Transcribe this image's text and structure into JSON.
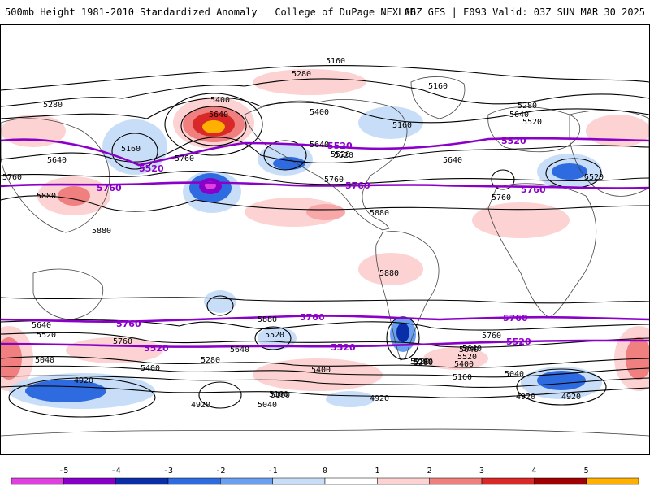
{
  "header": {
    "title_left": "500mb Height 1981-2010 Standardized Anomaly | College of DuPage NEXLAB",
    "title_right": "06Z GFS | F093 Valid: 03Z SUN MAR 30 2025"
  },
  "map": {
    "type": "500mb height contours with standardized anomaly shading",
    "contour_labels": [
      "5160",
      "5280",
      "5160",
      "5280",
      "5400",
      "5160",
      "5280",
      "5400",
      "5520",
      "5640",
      "5520",
      "5640",
      "5160",
      "5760",
      "5880",
      "5880",
      "5640",
      "5760",
      "5520",
      "5640",
      "5760",
      "5880",
      "5880",
      "5760",
      "5520",
      "5640",
      "5760",
      "5880",
      "5640",
      "5520",
      "5040",
      "4920",
      "5760",
      "5640",
      "5400",
      "5280",
      "5520",
      "5400",
      "5280",
      "5160",
      "5640",
      "5520",
      "5400",
      "5280",
      "5160",
      "5040",
      "4920",
      "4920",
      "5040",
      "4920",
      "5160",
      "4920",
      "5280",
      "5640"
    ],
    "highlight_contours": [
      "5520",
      "5760"
    ],
    "colors": {
      "contour": "#000000",
      "highlight": "#8b00c8",
      "coast": "#444444"
    }
  },
  "colorbar": {
    "ticks": [
      "-5",
      "-4",
      "-3",
      "-2",
      "-1",
      "0",
      "1",
      "2",
      "3",
      "4",
      "5"
    ],
    "colors": [
      "#e040e0",
      "#8800c8",
      "#0a2ea8",
      "#2f6be0",
      "#6aa0f0",
      "#c8def8",
      "#ffffff",
      "#fcd2d2",
      "#f08080",
      "#d82828",
      "#a00000",
      "#ffb000"
    ]
  }
}
